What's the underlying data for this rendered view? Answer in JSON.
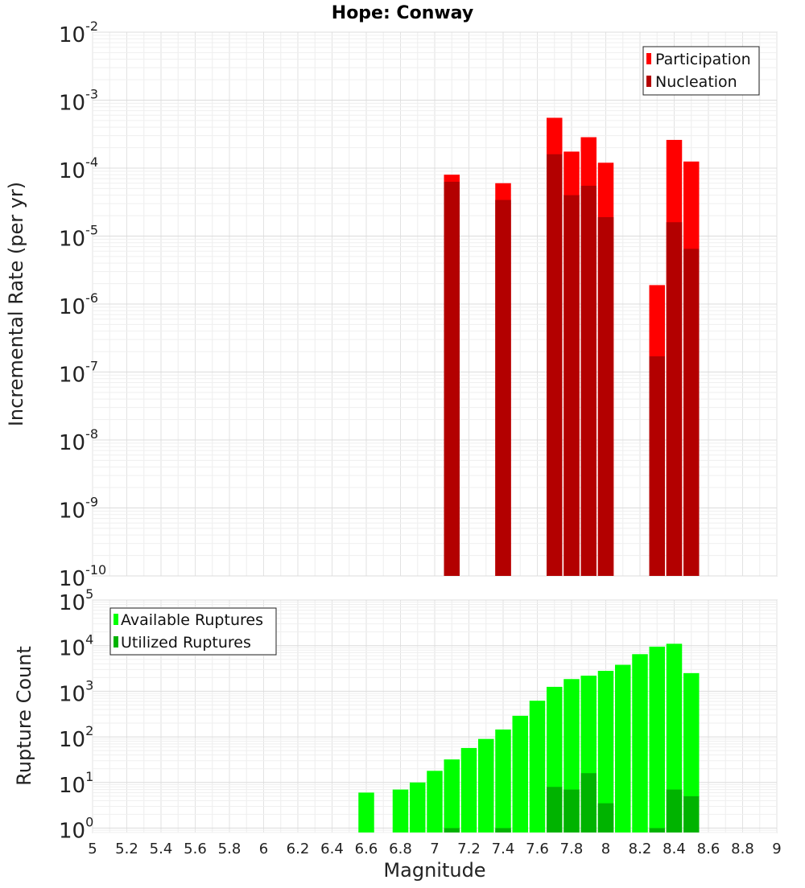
{
  "chart_data": [
    {
      "type": "bar",
      "title": "Hope: Conway",
      "ylabel": "Incremental Rate (per yr)",
      "xlabel": "",
      "yscale": "log",
      "ylim": [
        1e-10,
        0.01
      ],
      "xlim": [
        5,
        9
      ],
      "legend_position": "top-right",
      "y_ticks": [
        {
          "base": "10",
          "exp": "-10",
          "value": 1e-10
        },
        {
          "base": "10",
          "exp": "-9",
          "value": 1e-09
        },
        {
          "base": "10",
          "exp": "-8",
          "value": 1e-08
        },
        {
          "base": "10",
          "exp": "-7",
          "value": 1e-07
        },
        {
          "base": "10",
          "exp": "-6",
          "value": 1e-06
        },
        {
          "base": "10",
          "exp": "-5",
          "value": 1e-05
        },
        {
          "base": "10",
          "exp": "-4",
          "value": 0.0001
        },
        {
          "base": "10",
          "exp": "-3",
          "value": 0.001
        },
        {
          "base": "10",
          "exp": "-2",
          "value": 0.01
        }
      ],
      "series": [
        {
          "name": "Participation",
          "color": "#ff0000",
          "x": [
            7.1,
            7.4,
            7.7,
            7.8,
            7.9,
            8.0,
            8.3,
            8.4,
            8.5
          ],
          "values": [
            8e-05,
            6e-05,
            0.00055,
            0.000175,
            0.000285,
            0.00012,
            1.9e-06,
            0.00026,
            0.000125
          ]
        },
        {
          "name": "Nucleation",
          "color": "#b30000",
          "x": [
            7.1,
            7.4,
            7.7,
            7.8,
            7.9,
            8.0,
            8.3,
            8.4,
            8.5
          ],
          "values": [
            6.3e-05,
            3.4e-05,
            0.00016,
            4e-05,
            5.5e-05,
            1.9e-05,
            1.7e-07,
            1.6e-05,
            6.5e-06
          ]
        }
      ]
    },
    {
      "type": "bar",
      "title": "",
      "ylabel": "Rupture Count",
      "xlabel": "Magnitude",
      "yscale": "log",
      "ylim": [
        0.8,
        100000.0
      ],
      "xlim": [
        5,
        9
      ],
      "legend_position": "top-left",
      "y_ticks": [
        {
          "base": "10",
          "exp": "0",
          "value": 1
        },
        {
          "base": "10",
          "exp": "1",
          "value": 10
        },
        {
          "base": "10",
          "exp": "2",
          "value": 100
        },
        {
          "base": "10",
          "exp": "3",
          "value": 1000
        },
        {
          "base": "10",
          "exp": "4",
          "value": 10000
        },
        {
          "base": "10",
          "exp": "5",
          "value": 100000
        }
      ],
      "x_ticks": [
        "5",
        "5.2",
        "5.4",
        "5.6",
        "5.8",
        "6",
        "6.2",
        "6.4",
        "6.6",
        "6.8",
        "7",
        "7.2",
        "7.4",
        "7.6",
        "7.8",
        "8",
        "8.2",
        "8.4",
        "8.6",
        "8.8",
        "9"
      ],
      "series": [
        {
          "name": "Available Ruptures",
          "color": "#00ff00",
          "x": [
            6.6,
            6.8,
            6.9,
            7.0,
            7.1,
            7.2,
            7.3,
            7.4,
            7.5,
            7.6,
            7.7,
            7.8,
            7.9,
            8.0,
            8.1,
            8.2,
            8.3,
            8.4,
            8.5
          ],
          "values": [
            6,
            7,
            10,
            18,
            32,
            57,
            90,
            145,
            290,
            620,
            1250,
            1850,
            2200,
            2800,
            3800,
            6500,
            9500,
            11000,
            2500
          ]
        },
        {
          "name": "Utilized Ruptures",
          "color": "#00b300",
          "x": [
            7.1,
            7.4,
            7.7,
            7.8,
            7.9,
            8.0,
            8.3,
            8.4,
            8.5
          ],
          "values": [
            1,
            1,
            8,
            7,
            16,
            3.5,
            1,
            7,
            5
          ]
        }
      ]
    }
  ]
}
